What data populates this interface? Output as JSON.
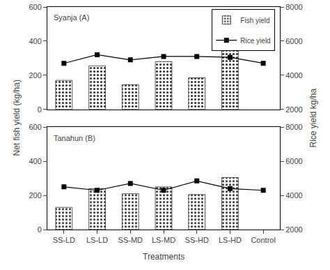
{
  "chart_data": [
    {
      "type": "bar",
      "title": "Syanja (A)",
      "categories": [
        "SS-LD",
        "LS-LD",
        "SS-MD",
        "LS-MD",
        "SS-HD",
        "LS-HD",
        "Control"
      ],
      "series": [
        {
          "name": "Fish yield",
          "type": "bar",
          "color": "#ffffff",
          "values": [
            170,
            255,
            145,
            280,
            185,
            345,
            null
          ]
        },
        {
          "name": "Rice yield",
          "type": "line",
          "axis": "y2",
          "color": "#000000",
          "marker": "square",
          "values": [
            4700,
            5200,
            4900,
            5100,
            5100,
            5050,
            4700
          ]
        }
      ],
      "ylabel": "Net fish yield (kg/ha)",
      "y2label": "Rice yield kg/ha",
      "ylim": [
        0,
        600
      ],
      "yticks": [
        0,
        200,
        400,
        600
      ],
      "y2lim": [
        2000,
        8000
      ],
      "y2ticks": [
        2000,
        4000,
        6000,
        8000
      ],
      "legend": "upper right",
      "grid": false,
      "tick_labels": "y"
    },
    {
      "type": "bar",
      "title": "Tanahun (B)",
      "categories": [
        "SS-LD",
        "LS-LD",
        "SS-MD",
        "LS-MD",
        "SS-HD",
        "LS-HD",
        "Control"
      ],
      "series": [
        {
          "name": "Fish yield",
          "type": "bar",
          "color": "#ffffff",
          "values": [
            130,
            240,
            210,
            250,
            205,
            305,
            null
          ]
        },
        {
          "name": "Rice yield",
          "type": "line",
          "axis": "y2",
          "color": "#000000",
          "marker": "square",
          "values": [
            4500,
            4300,
            4700,
            4300,
            4850,
            4400,
            4300
          ]
        }
      ],
      "xlabel": "Treatments",
      "ylim": [
        0,
        600
      ],
      "yticks": [
        0,
        200,
        400,
        600
      ],
      "y2lim": [
        2000,
        8000
      ],
      "y2ticks": [
        2000,
        4000,
        6000,
        8000
      ],
      "legend": false,
      "grid": false
    }
  ]
}
